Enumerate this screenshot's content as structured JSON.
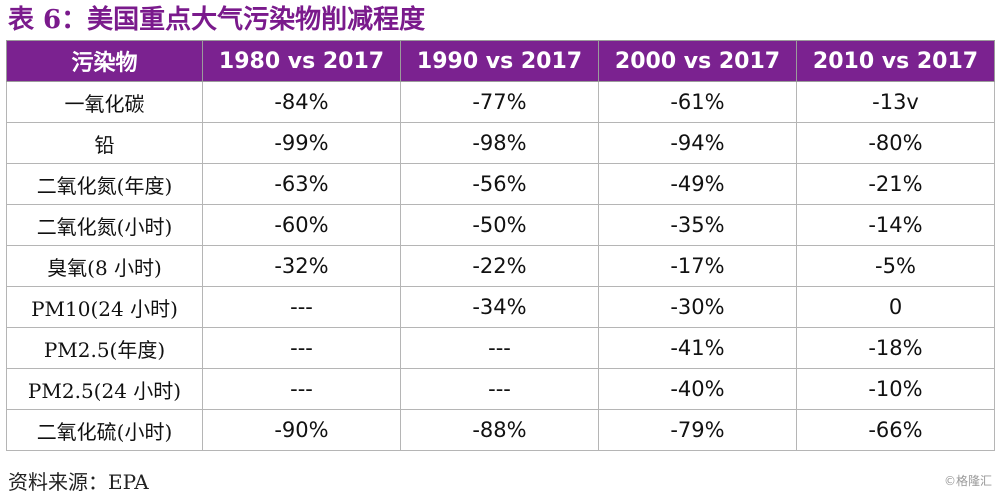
{
  "title": "表 6：美国重点大气污染物削减程度",
  "table": {
    "headers": [
      "污染物",
      "1980 vs 2017",
      "1990 vs 2017",
      "2000 vs 2017",
      "2010 vs 2017"
    ],
    "rows": [
      [
        "一氧化碳",
        "-84%",
        "-77%",
        "-61%",
        "-13v"
      ],
      [
        "铅",
        "-99%",
        "-98%",
        "-94%",
        "-80%"
      ],
      [
        "二氧化氮(年度)",
        "-63%",
        "-56%",
        "-49%",
        "-21%"
      ],
      [
        "二氧化氮(小时)",
        "-60%",
        "-50%",
        "-35%",
        "-14%"
      ],
      [
        "臭氧(8 小时)",
        "-32%",
        "-22%",
        "-17%",
        "-5%"
      ],
      [
        "PM10(24 小时)",
        "---",
        "-34%",
        "-30%",
        "0"
      ],
      [
        "PM2.5(年度)",
        "---",
        "---",
        "-41%",
        "-18%"
      ],
      [
        "PM2.5(24 小时)",
        "---",
        "---",
        "-40%",
        "-10%"
      ],
      [
        "二氧化硫(小时)",
        "-90%",
        "-88%",
        "-79%",
        "-66%"
      ]
    ]
  },
  "source": "资料来源：EPA",
  "watermark": "©格隆汇",
  "colors": {
    "header_bg": "#7b2290",
    "title": "#7a1a8c"
  }
}
